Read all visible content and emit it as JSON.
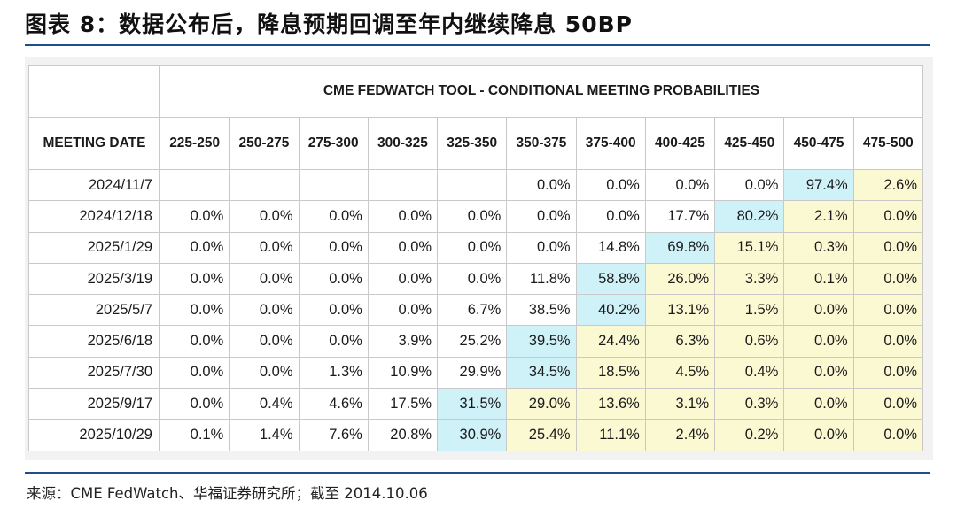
{
  "title": "图表 8：数据公布后，降息预期回调至年内继续降息 50BP",
  "source": "来源：CME FedWatch、华福证券研究所；截至 2014.10.06",
  "colors": {
    "highlight_max": "#cff2f9",
    "highlight_above": "#fbf9d2",
    "rule": "#1f4e8c"
  },
  "chart_data": {
    "type": "table",
    "title": "CME FEDWATCH TOOL - CONDITIONAL MEETING PROBABILITIES",
    "row_header_label": "MEETING DATE",
    "columns": [
      "225-250",
      "250-275",
      "275-300",
      "300-325",
      "325-350",
      "350-375",
      "375-400",
      "400-425",
      "425-450",
      "450-475",
      "475-500"
    ],
    "rows": [
      {
        "date": "2024/11/7",
        "values": [
          "",
          "",
          "",
          "",
          "",
          "0.0%",
          "0.0%",
          "0.0%",
          "0.0%",
          "97.4%",
          "2.6%"
        ],
        "max_index": 9
      },
      {
        "date": "2024/12/18",
        "values": [
          "0.0%",
          "0.0%",
          "0.0%",
          "0.0%",
          "0.0%",
          "0.0%",
          "0.0%",
          "17.7%",
          "80.2%",
          "2.1%",
          "0.0%"
        ],
        "max_index": 8
      },
      {
        "date": "2025/1/29",
        "values": [
          "0.0%",
          "0.0%",
          "0.0%",
          "0.0%",
          "0.0%",
          "0.0%",
          "14.8%",
          "69.8%",
          "15.1%",
          "0.3%",
          "0.0%"
        ],
        "max_index": 7
      },
      {
        "date": "2025/3/19",
        "values": [
          "0.0%",
          "0.0%",
          "0.0%",
          "0.0%",
          "0.0%",
          "11.8%",
          "58.8%",
          "26.0%",
          "3.3%",
          "0.1%",
          "0.0%"
        ],
        "max_index": 6
      },
      {
        "date": "2025/5/7",
        "values": [
          "0.0%",
          "0.0%",
          "0.0%",
          "0.0%",
          "6.7%",
          "38.5%",
          "40.2%",
          "13.1%",
          "1.5%",
          "0.0%",
          "0.0%"
        ],
        "max_index": 6
      },
      {
        "date": "2025/6/18",
        "values": [
          "0.0%",
          "0.0%",
          "0.0%",
          "3.9%",
          "25.2%",
          "39.5%",
          "24.4%",
          "6.3%",
          "0.6%",
          "0.0%",
          "0.0%"
        ],
        "max_index": 5
      },
      {
        "date": "2025/7/30",
        "values": [
          "0.0%",
          "0.0%",
          "1.3%",
          "10.9%",
          "29.9%",
          "34.5%",
          "18.5%",
          "4.5%",
          "0.4%",
          "0.0%",
          "0.0%"
        ],
        "max_index": 5
      },
      {
        "date": "2025/9/17",
        "values": [
          "0.0%",
          "0.4%",
          "4.6%",
          "17.5%",
          "31.5%",
          "29.0%",
          "13.6%",
          "3.1%",
          "0.3%",
          "0.0%",
          "0.0%"
        ],
        "max_index": 4
      },
      {
        "date": "2025/10/29",
        "values": [
          "0.1%",
          "1.4%",
          "7.6%",
          "20.8%",
          "30.9%",
          "25.4%",
          "11.1%",
          "2.4%",
          "0.2%",
          "0.0%",
          "0.0%"
        ],
        "max_index": 4
      }
    ]
  }
}
